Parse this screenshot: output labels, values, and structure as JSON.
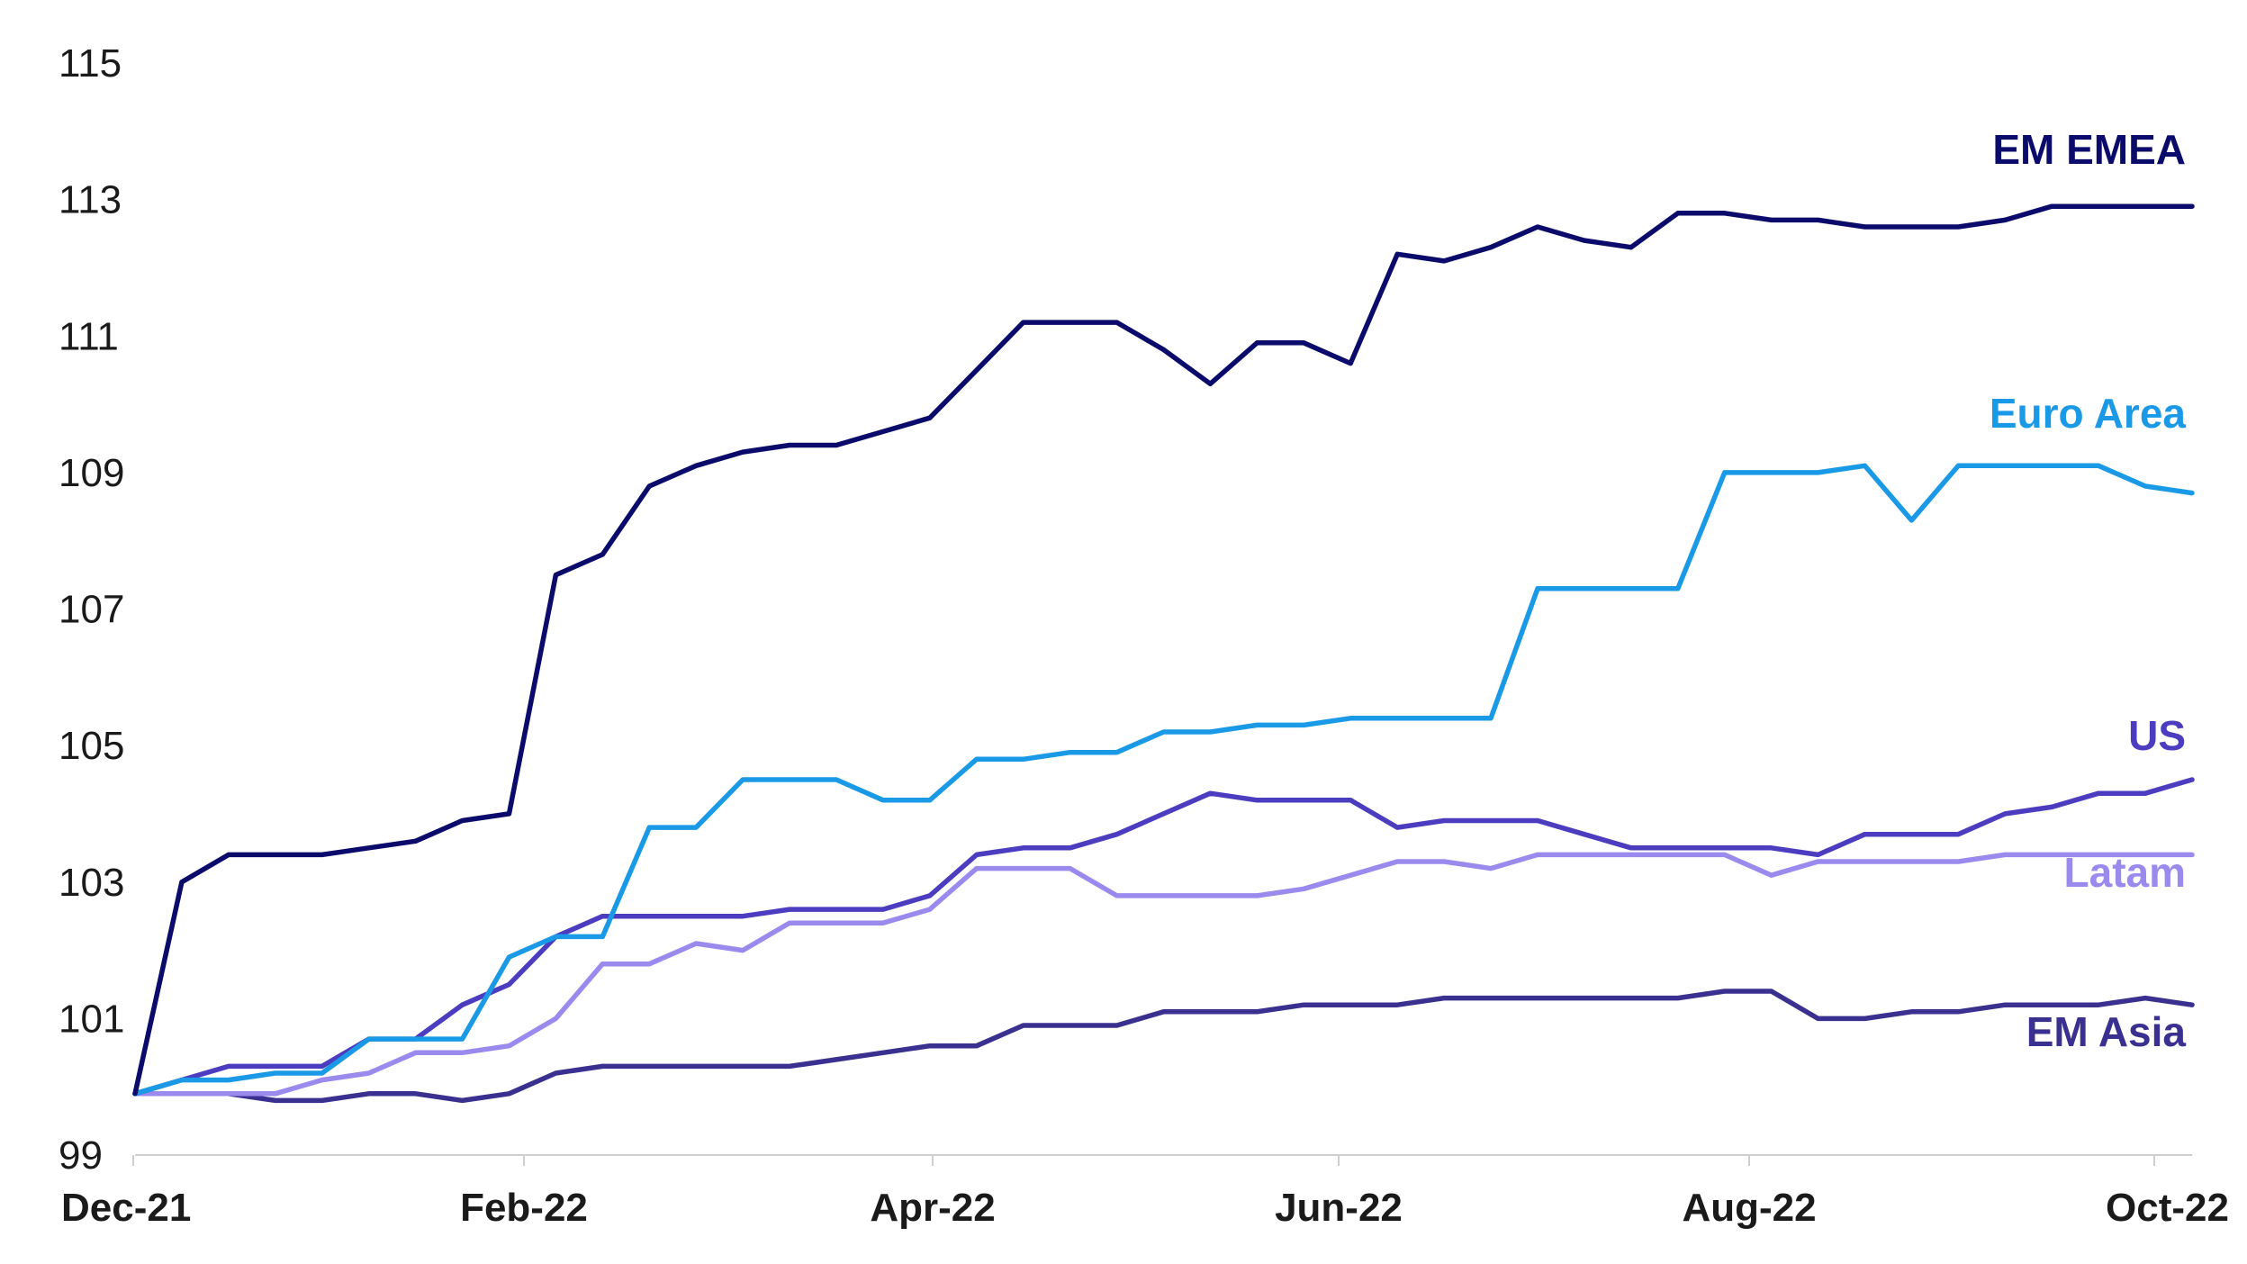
{
  "chart_data": {
    "type": "line",
    "title": "",
    "xlabel": "",
    "ylabel": "",
    "ylim": [
      99,
      115
    ],
    "yticks": [
      "99",
      "101",
      "103",
      "105",
      "107",
      "109",
      "111",
      "113",
      "115"
    ],
    "xticks": [
      "Dec-21",
      "Feb-22",
      "Apr-22",
      "Jun-22",
      "Aug-22",
      "Oct-22"
    ],
    "grid": false,
    "legend": "inline-right",
    "x": [
      0,
      1,
      2,
      3,
      4,
      5,
      6,
      7,
      8,
      9,
      10,
      11,
      12,
      13,
      14,
      15,
      16,
      17,
      18,
      19,
      20,
      21,
      22,
      23,
      24,
      25,
      26,
      27,
      28,
      29,
      30,
      31,
      32,
      33,
      34,
      35,
      36,
      37,
      38,
      39,
      40,
      41,
      42,
      43,
      44
    ],
    "series": [
      {
        "name": "EM EMEA",
        "color": "#0b0b6b",
        "values": [
          99.9,
          103.0,
          103.4,
          103.4,
          103.4,
          103.5,
          103.6,
          103.9,
          104.0,
          107.5,
          107.8,
          108.8,
          109.1,
          109.3,
          109.4,
          109.4,
          109.6,
          109.8,
          110.5,
          111.2,
          111.2,
          111.2,
          110.8,
          110.3,
          110.9,
          110.9,
          110.6,
          112.2,
          112.1,
          112.3,
          112.6,
          112.4,
          112.3,
          112.8,
          112.8,
          112.7,
          112.7,
          112.6,
          112.6,
          112.6,
          112.7,
          112.9,
          112.9,
          112.9,
          112.9
        ]
      },
      {
        "name": "Euro Area",
        "color": "#1a9ae6",
        "values": [
          99.9,
          100.1,
          100.1,
          100.2,
          100.2,
          100.7,
          100.7,
          100.7,
          101.9,
          102.2,
          102.2,
          103.8,
          103.8,
          104.5,
          104.5,
          104.5,
          104.2,
          104.2,
          104.8,
          104.8,
          104.9,
          104.9,
          105.2,
          105.2,
          105.3,
          105.3,
          105.4,
          105.4,
          105.4,
          105.4,
          107.3,
          107.3,
          107.3,
          107.3,
          109.0,
          109.0,
          109.0,
          109.1,
          108.3,
          109.1,
          109.1,
          109.1,
          109.1,
          108.8,
          108.7
        ]
      },
      {
        "name": "US",
        "color": "#4b3cc0",
        "values": [
          99.9,
          100.1,
          100.3,
          100.3,
          100.3,
          100.7,
          100.7,
          101.2,
          101.5,
          102.2,
          102.5,
          102.5,
          102.5,
          102.5,
          102.6,
          102.6,
          102.6,
          102.8,
          103.4,
          103.5,
          103.5,
          103.7,
          104.0,
          104.3,
          104.2,
          104.2,
          104.2,
          103.8,
          103.9,
          103.9,
          103.9,
          103.7,
          103.5,
          103.5,
          103.5,
          103.5,
          103.4,
          103.7,
          103.7,
          103.7,
          104.0,
          104.1,
          104.3,
          104.3,
          104.5
        ]
      },
      {
        "name": "Latam",
        "color": "#9a8aee",
        "values": [
          99.9,
          99.9,
          99.9,
          99.9,
          100.1,
          100.2,
          100.5,
          100.5,
          100.6,
          101.0,
          101.8,
          101.8,
          102.1,
          102.0,
          102.4,
          102.4,
          102.4,
          102.6,
          103.2,
          103.2,
          103.2,
          102.8,
          102.8,
          102.8,
          102.8,
          102.9,
          103.1,
          103.3,
          103.3,
          103.2,
          103.4,
          103.4,
          103.4,
          103.4,
          103.4,
          103.1,
          103.3,
          103.3,
          103.3,
          103.3,
          103.4,
          103.4,
          103.4,
          103.4,
          103.4
        ]
      },
      {
        "name": "EM Asia",
        "color": "#3a3090",
        "values": [
          99.9,
          99.9,
          99.9,
          99.8,
          99.8,
          99.9,
          99.9,
          99.8,
          99.9,
          100.2,
          100.3,
          100.3,
          100.3,
          100.3,
          100.3,
          100.4,
          100.5,
          100.6,
          100.6,
          100.9,
          100.9,
          100.9,
          101.1,
          101.1,
          101.1,
          101.2,
          101.2,
          101.2,
          101.3,
          101.3,
          101.3,
          101.3,
          101.3,
          101.3,
          101.4,
          101.4,
          101.0,
          101.0,
          101.1,
          101.1,
          101.2,
          101.2,
          101.2,
          101.3,
          101.2
        ]
      }
    ]
  }
}
